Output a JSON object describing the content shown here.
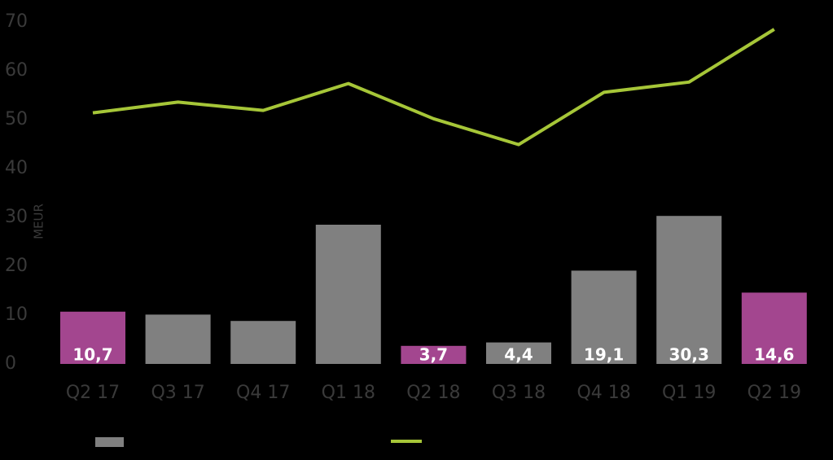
{
  "chart_data": {
    "type": "bar-line",
    "y_label": "MEUR",
    "categories": [
      "Q2 17",
      "Q3 17",
      "Q4 17",
      "Q1 18",
      "Q2 18",
      "Q3 18",
      "Q4 18",
      "Q1 19",
      "Q2 19"
    ],
    "series": [
      {
        "type": "bar",
        "color": "#808080",
        "colors": [
          "#a3468f",
          "#808080",
          "#808080",
          "#808080",
          "#a3468f",
          "#808080",
          "#808080",
          "#808080",
          "#a3468f"
        ],
        "values": [
          10.7,
          10.1,
          8.8,
          28.5,
          3.7,
          4.4,
          19.1,
          30.3,
          14.6
        ],
        "value_labels": [
          "10,7",
          null,
          null,
          null,
          "3,7",
          "4,4",
          "19,1",
          "30,3",
          "14,6"
        ]
      },
      {
        "type": "line",
        "color": "#a6c638",
        "values": [
          51.4,
          53.6,
          51.9,
          57.4,
          50.2,
          44.9,
          55.6,
          57.7,
          68.5
        ]
      }
    ],
    "ylim": [
      0,
      70
    ],
    "yticks": [
      0,
      10,
      20,
      30,
      40,
      50,
      60,
      70
    ]
  }
}
